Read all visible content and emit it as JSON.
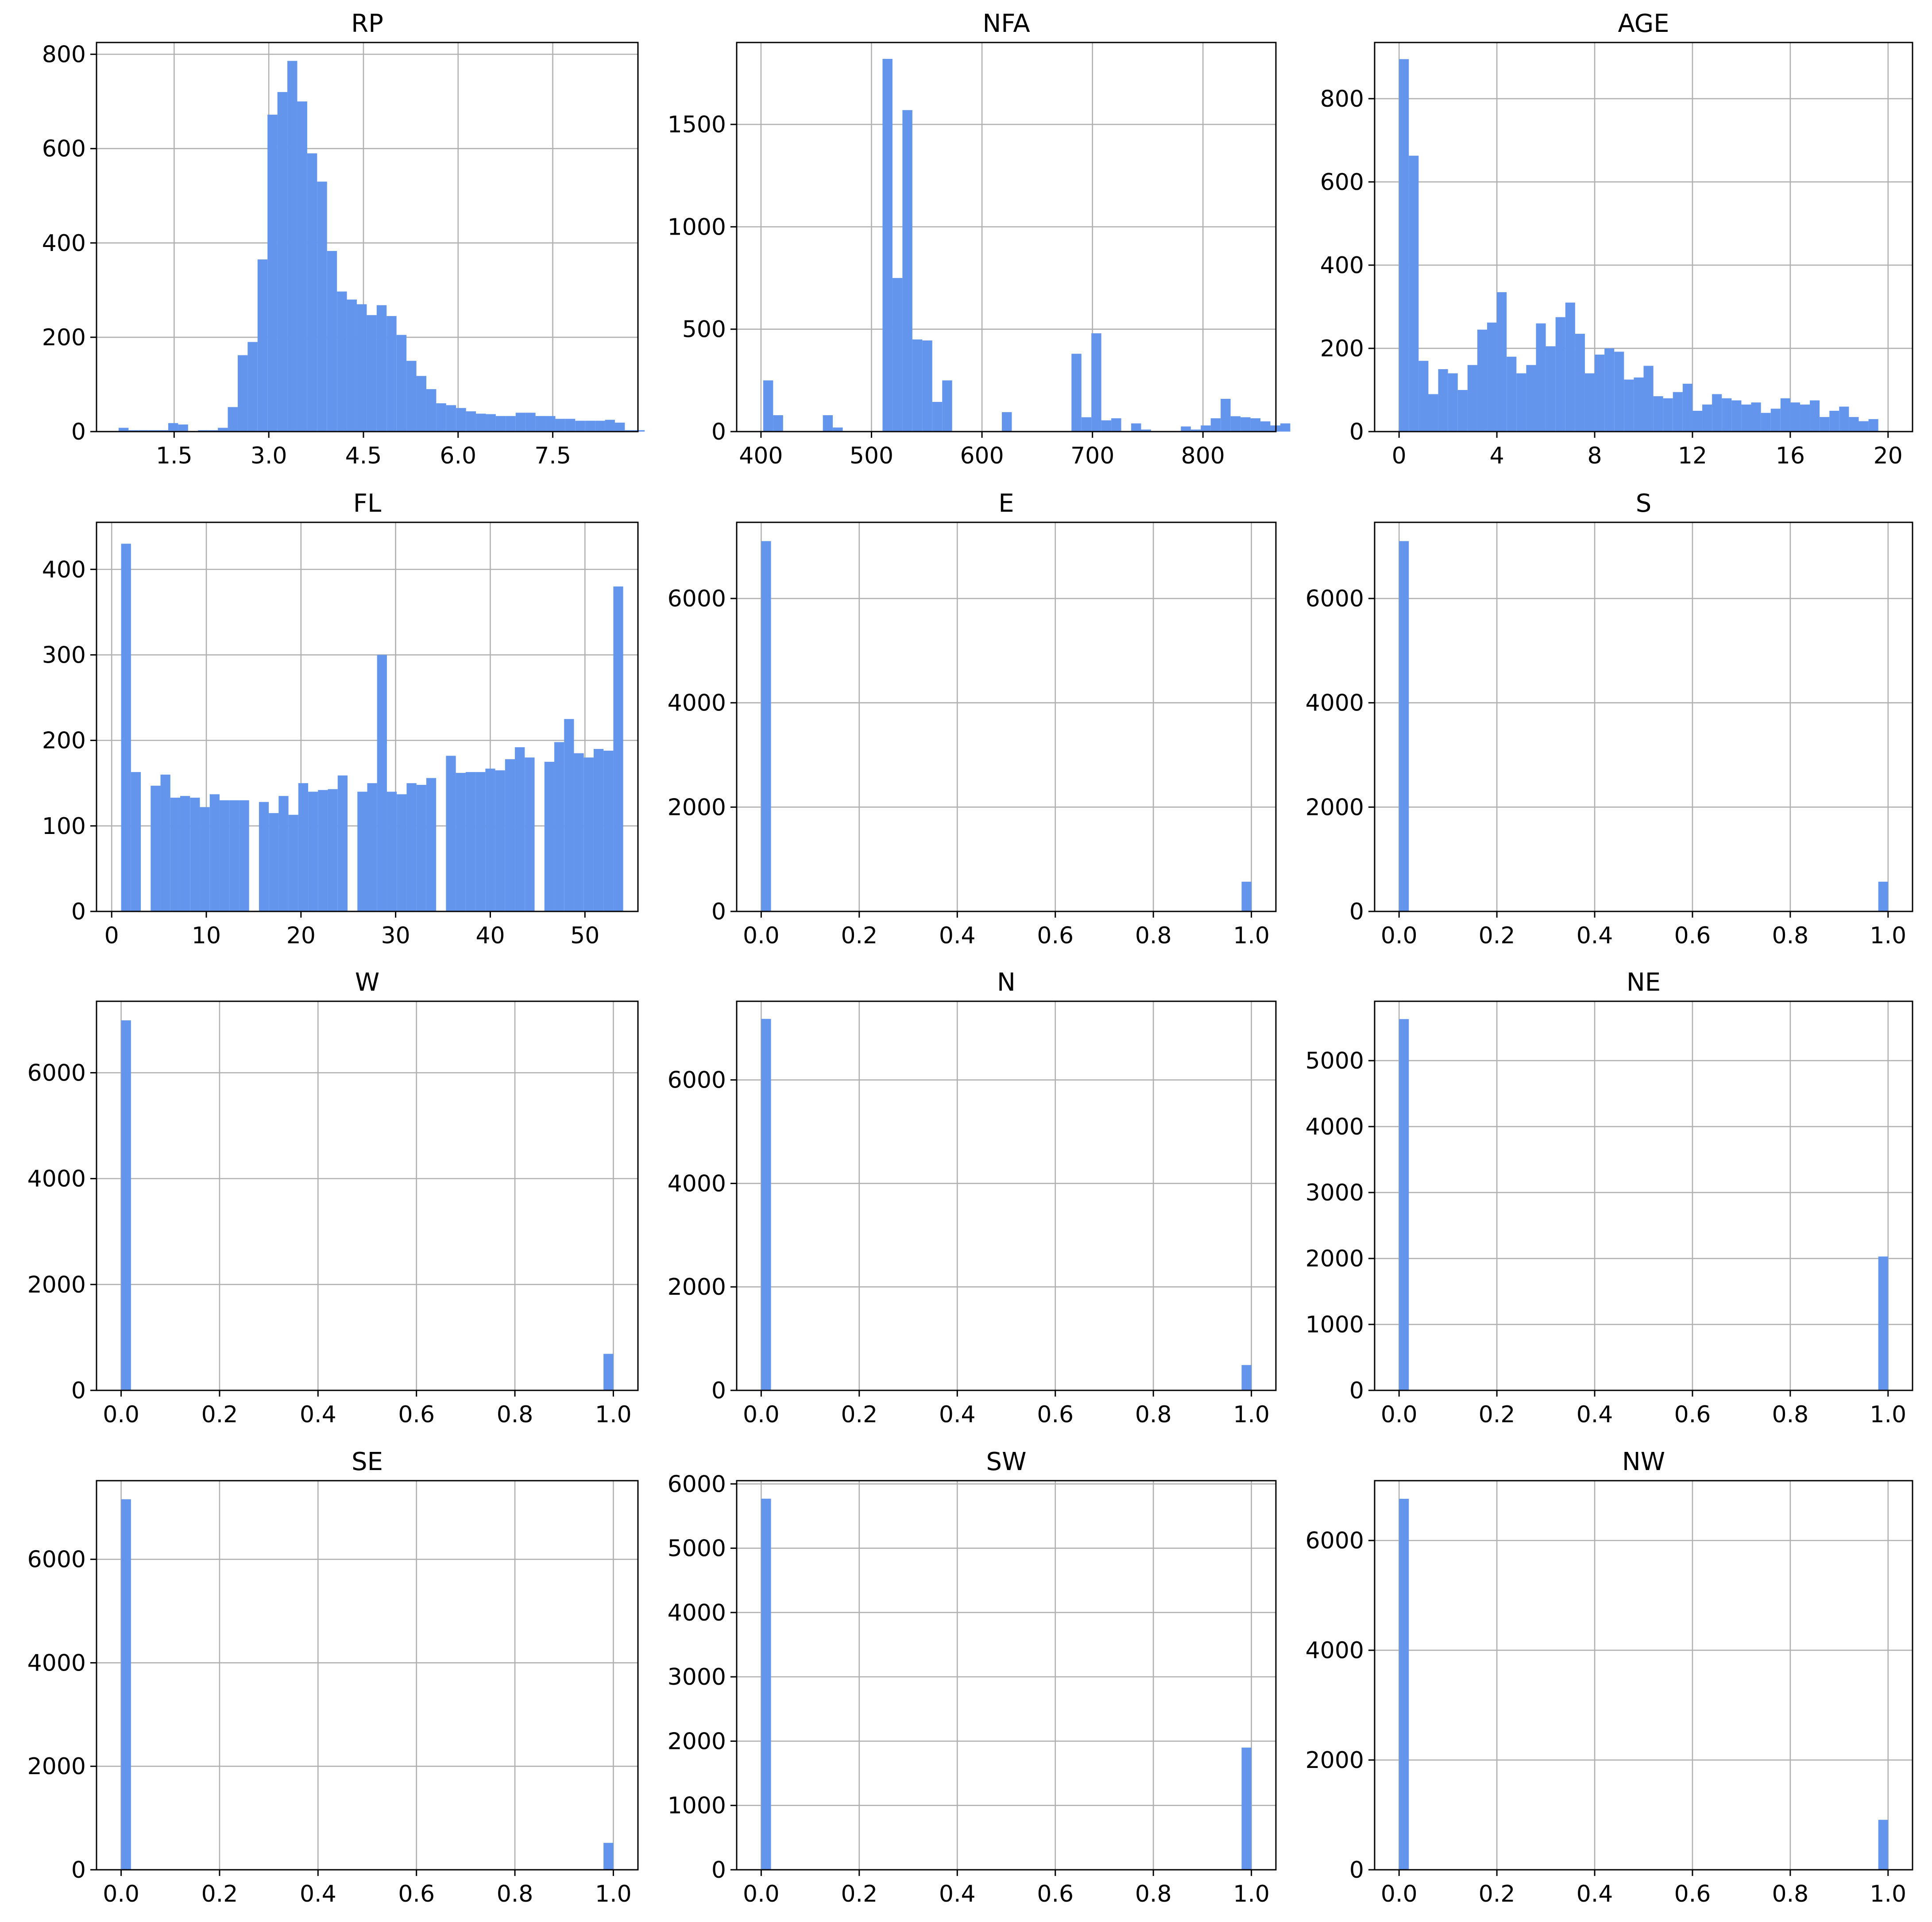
{
  "bar_color": "#6495ED",
  "chart_data": [
    {
      "type": "bar",
      "title": "RP",
      "xlim": [
        0.27,
        8.85
      ],
      "ylim": [
        0,
        825
      ],
      "xticks": [
        1.5,
        3.0,
        4.5,
        6.0,
        7.5
      ],
      "xtick_labels": [
        "1.5",
        "3.0",
        "4.5",
        "6.0",
        "7.5"
      ],
      "yticks": [
        0,
        200,
        400,
        600,
        800
      ],
      "ytick_labels": [
        "0",
        "200",
        "400",
        "600",
        "800"
      ],
      "bin_start": 0.62,
      "bin_width": 0.1573,
      "values": [
        8,
        3,
        3,
        3,
        3,
        18,
        15,
        0,
        3,
        3,
        8,
        52,
        162,
        190,
        365,
        672,
        720,
        786,
        700,
        590,
        530,
        383,
        297,
        280,
        270,
        247,
        268,
        245,
        205,
        150,
        118,
        90,
        60,
        56,
        50,
        43,
        38,
        37,
        33,
        33,
        40,
        40,
        33,
        33,
        27,
        27,
        23,
        23,
        23,
        25,
        19,
        3,
        3,
        0,
        0,
        0
      ]
    },
    {
      "type": "bar",
      "title": "NFA",
      "xlim": [
        378,
        866
      ],
      "ylim": [
        0,
        1900
      ],
      "xticks": [
        400,
        500,
        600,
        700,
        800
      ],
      "xtick_labels": [
        "400",
        "500",
        "600",
        "700",
        "800"
      ],
      "yticks": [
        0,
        500,
        1000,
        1500
      ],
      "ytick_labels": [
        "0",
        "500",
        "1000",
        "1500"
      ],
      "bin_start": 402,
      "bin_width": 9,
      "values": [
        250,
        80,
        0,
        0,
        0,
        0,
        80,
        20,
        0,
        0,
        0,
        0,
        1820,
        750,
        1570,
        450,
        445,
        145,
        250,
        0,
        0,
        0,
        0,
        0,
        95,
        0,
        0,
        0,
        0,
        0,
        0,
        380,
        70,
        480,
        55,
        65,
        0,
        40,
        10,
        0,
        0,
        0,
        25,
        10,
        30,
        65,
        160,
        75,
        70,
        65,
        50,
        30,
        40
      ]
    },
    {
      "type": "bar",
      "title": "AGE",
      "xlim": [
        -1.0,
        21.0
      ],
      "ylim": [
        0,
        935
      ],
      "xticks": [
        0,
        4,
        8,
        12,
        16,
        20
      ],
      "xtick_labels": [
        "0",
        "4",
        "8",
        "12",
        "16",
        "20"
      ],
      "yticks": [
        0,
        200,
        400,
        600,
        800
      ],
      "ytick_labels": [
        "0",
        "200",
        "400",
        "600",
        "800"
      ],
      "bin_start": 0,
      "bin_width": 0.4,
      "values": [
        895,
        663,
        170,
        90,
        150,
        140,
        100,
        160,
        245,
        262,
        335,
        180,
        140,
        160,
        260,
        205,
        275,
        310,
        235,
        140,
        185,
        200,
        192,
        125,
        130,
        158,
        85,
        80,
        95,
        115,
        50,
        65,
        90,
        80,
        75,
        65,
        70,
        45,
        55,
        80,
        70,
        65,
        75,
        35,
        50,
        60,
        35,
        25,
        30
      ]
    },
    {
      "type": "bar",
      "title": "FL",
      "xlim": [
        -1.6,
        55.6
      ],
      "ylim": [
        0,
        455
      ],
      "xticks": [
        0,
        10,
        20,
        30,
        40,
        50
      ],
      "xtick_labels": [
        "0",
        "10",
        "20",
        "30",
        "40",
        "50"
      ],
      "yticks": [
        0,
        100,
        200,
        300,
        400
      ],
      "ytick_labels": [
        "0",
        "100",
        "200",
        "300",
        "400"
      ],
      "bin_start": 1,
      "bin_width": 1.04,
      "values": [
        430,
        163,
        0,
        147,
        160,
        133,
        135,
        133,
        122,
        137,
        130,
        130,
        130,
        0,
        128,
        115,
        135,
        113,
        150,
        140,
        142,
        143,
        159,
        0,
        140,
        150,
        300,
        140,
        137,
        150,
        148,
        156,
        0,
        182,
        162,
        163,
        163,
        167,
        165,
        178,
        192,
        180,
        0,
        175,
        198,
        225,
        185,
        180,
        190,
        188,
        380
      ]
    },
    {
      "type": "bar",
      "title": "E",
      "xlim": [
        -0.05,
        1.05
      ],
      "ylim": [
        0,
        7460
      ],
      "xticks": [
        0.0,
        0.2,
        0.4,
        0.6,
        0.8,
        1.0
      ],
      "xtick_labels": [
        "0.0",
        "0.2",
        "0.4",
        "0.6",
        "0.8",
        "1.0"
      ],
      "yticks": [
        0,
        2000,
        4000,
        6000
      ],
      "ytick_labels": [
        "0",
        "2000",
        "4000",
        "6000"
      ],
      "bin_start": 0,
      "bin_width": 0.02,
      "values": [
        7100,
        0,
        0,
        0,
        0,
        0,
        0,
        0,
        0,
        0,
        0,
        0,
        0,
        0,
        0,
        0,
        0,
        0,
        0,
        0,
        0,
        0,
        0,
        0,
        0,
        0,
        0,
        0,
        0,
        0,
        0,
        0,
        0,
        0,
        0,
        0,
        0,
        0,
        0,
        0,
        0,
        0,
        0,
        0,
        0,
        0,
        0,
        0,
        0,
        570
      ]
    },
    {
      "type": "bar",
      "title": "S",
      "xlim": [
        -0.05,
        1.05
      ],
      "ylim": [
        0,
        7460
      ],
      "xticks": [
        0.0,
        0.2,
        0.4,
        0.6,
        0.8,
        1.0
      ],
      "xtick_labels": [
        "0.0",
        "0.2",
        "0.4",
        "0.6",
        "0.8",
        "1.0"
      ],
      "yticks": [
        0,
        2000,
        4000,
        6000
      ],
      "ytick_labels": [
        "0",
        "2000",
        "4000",
        "6000"
      ],
      "bin_start": 0,
      "bin_width": 0.02,
      "values": [
        7100,
        0,
        0,
        0,
        0,
        0,
        0,
        0,
        0,
        0,
        0,
        0,
        0,
        0,
        0,
        0,
        0,
        0,
        0,
        0,
        0,
        0,
        0,
        0,
        0,
        0,
        0,
        0,
        0,
        0,
        0,
        0,
        0,
        0,
        0,
        0,
        0,
        0,
        0,
        0,
        0,
        0,
        0,
        0,
        0,
        0,
        0,
        0,
        0,
        570
      ]
    },
    {
      "type": "bar",
      "title": "W",
      "xlim": [
        -0.05,
        1.05
      ],
      "ylim": [
        0,
        7350
      ],
      "xticks": [
        0.0,
        0.2,
        0.4,
        0.6,
        0.8,
        1.0
      ],
      "xtick_labels": [
        "0.0",
        "0.2",
        "0.4",
        "0.6",
        "0.8",
        "1.0"
      ],
      "yticks": [
        0,
        2000,
        4000,
        6000
      ],
      "ytick_labels": [
        "0",
        "2000",
        "4000",
        "6000"
      ],
      "bin_start": 0,
      "bin_width": 0.02,
      "values": [
        6990,
        0,
        0,
        0,
        0,
        0,
        0,
        0,
        0,
        0,
        0,
        0,
        0,
        0,
        0,
        0,
        0,
        0,
        0,
        0,
        0,
        0,
        0,
        0,
        0,
        0,
        0,
        0,
        0,
        0,
        0,
        0,
        0,
        0,
        0,
        0,
        0,
        0,
        0,
        0,
        0,
        0,
        0,
        0,
        0,
        0,
        0,
        0,
        0,
        690
      ]
    },
    {
      "type": "bar",
      "title": "N",
      "xlim": [
        -0.05,
        1.05
      ],
      "ylim": [
        0,
        7520
      ],
      "xticks": [
        0.0,
        0.2,
        0.4,
        0.6,
        0.8,
        1.0
      ],
      "xtick_labels": [
        "0.0",
        "0.2",
        "0.4",
        "0.6",
        "0.8",
        "1.0"
      ],
      "yticks": [
        0,
        2000,
        4000,
        6000
      ],
      "ytick_labels": [
        "0",
        "2000",
        "4000",
        "6000"
      ],
      "bin_start": 0,
      "bin_width": 0.02,
      "values": [
        7180,
        0,
        0,
        0,
        0,
        0,
        0,
        0,
        0,
        0,
        0,
        0,
        0,
        0,
        0,
        0,
        0,
        0,
        0,
        0,
        0,
        0,
        0,
        0,
        0,
        0,
        0,
        0,
        0,
        0,
        0,
        0,
        0,
        0,
        0,
        0,
        0,
        0,
        0,
        0,
        0,
        0,
        0,
        0,
        0,
        0,
        0,
        0,
        0,
        490
      ]
    },
    {
      "type": "bar",
      "title": "NE",
      "xlim": [
        -0.05,
        1.05
      ],
      "ylim": [
        0,
        5900
      ],
      "xticks": [
        0.0,
        0.2,
        0.4,
        0.6,
        0.8,
        1.0
      ],
      "xtick_labels": [
        "0.0",
        "0.2",
        "0.4",
        "0.6",
        "0.8",
        "1.0"
      ],
      "yticks": [
        0,
        1000,
        2000,
        3000,
        4000,
        5000
      ],
      "ytick_labels": [
        "0",
        "1000",
        "2000",
        "3000",
        "4000",
        "5000"
      ],
      "bin_start": 0,
      "bin_width": 0.02,
      "values": [
        5630,
        0,
        0,
        0,
        0,
        0,
        0,
        0,
        0,
        0,
        0,
        0,
        0,
        0,
        0,
        0,
        0,
        0,
        0,
        0,
        0,
        0,
        0,
        0,
        0,
        0,
        0,
        0,
        0,
        0,
        0,
        0,
        0,
        0,
        0,
        0,
        0,
        0,
        0,
        0,
        0,
        0,
        0,
        0,
        0,
        0,
        0,
        0,
        0,
        2030
      ]
    },
    {
      "type": "bar",
      "title": "SE",
      "xlim": [
        -0.05,
        1.05
      ],
      "ylim": [
        0,
        7520
      ],
      "xticks": [
        0.0,
        0.2,
        0.4,
        0.6,
        0.8,
        1.0
      ],
      "xtick_labels": [
        "0.0",
        "0.2",
        "0.4",
        "0.6",
        "0.8",
        "1.0"
      ],
      "yticks": [
        0,
        2000,
        4000,
        6000
      ],
      "ytick_labels": [
        "0",
        "2000",
        "4000",
        "6000"
      ],
      "bin_start": 0,
      "bin_width": 0.02,
      "values": [
        7160,
        0,
        0,
        0,
        0,
        0,
        0,
        0,
        0,
        0,
        0,
        0,
        0,
        0,
        0,
        0,
        0,
        0,
        0,
        0,
        0,
        0,
        0,
        0,
        0,
        0,
        0,
        0,
        0,
        0,
        0,
        0,
        0,
        0,
        0,
        0,
        0,
        0,
        0,
        0,
        0,
        0,
        0,
        0,
        0,
        0,
        0,
        0,
        0,
        520
      ]
    },
    {
      "type": "bar",
      "title": "SW",
      "xlim": [
        -0.05,
        1.05
      ],
      "ylim": [
        0,
        6050
      ],
      "xticks": [
        0.0,
        0.2,
        0.4,
        0.6,
        0.8,
        1.0
      ],
      "xtick_labels": [
        "0.0",
        "0.2",
        "0.4",
        "0.6",
        "0.8",
        "1.0"
      ],
      "yticks": [
        0,
        1000,
        2000,
        3000,
        4000,
        5000,
        6000
      ],
      "ytick_labels": [
        "0",
        "1000",
        "2000",
        "3000",
        "4000",
        "5000",
        "6000"
      ],
      "bin_start": 0,
      "bin_width": 0.02,
      "values": [
        5770,
        0,
        0,
        0,
        0,
        0,
        0,
        0,
        0,
        0,
        0,
        0,
        0,
        0,
        0,
        0,
        0,
        0,
        0,
        0,
        0,
        0,
        0,
        0,
        0,
        0,
        0,
        0,
        0,
        0,
        0,
        0,
        0,
        0,
        0,
        0,
        0,
        0,
        0,
        0,
        0,
        0,
        0,
        0,
        0,
        0,
        0,
        0,
        0,
        1900
      ]
    },
    {
      "type": "bar",
      "title": "NW",
      "xlim": [
        -0.05,
        1.05
      ],
      "ylim": [
        0,
        7090
      ],
      "xticks": [
        0.0,
        0.2,
        0.4,
        0.6,
        0.8,
        1.0
      ],
      "xtick_labels": [
        "0.0",
        "0.2",
        "0.4",
        "0.6",
        "0.8",
        "1.0"
      ],
      "yticks": [
        0,
        2000,
        4000,
        6000
      ],
      "ytick_labels": [
        "0",
        "2000",
        "4000",
        "6000"
      ],
      "bin_start": 0,
      "bin_width": 0.02,
      "values": [
        6760,
        0,
        0,
        0,
        0,
        0,
        0,
        0,
        0,
        0,
        0,
        0,
        0,
        0,
        0,
        0,
        0,
        0,
        0,
        0,
        0,
        0,
        0,
        0,
        0,
        0,
        0,
        0,
        0,
        0,
        0,
        0,
        0,
        0,
        0,
        0,
        0,
        0,
        0,
        0,
        0,
        0,
        0,
        0,
        0,
        0,
        0,
        0,
        0,
        910
      ]
    }
  ]
}
